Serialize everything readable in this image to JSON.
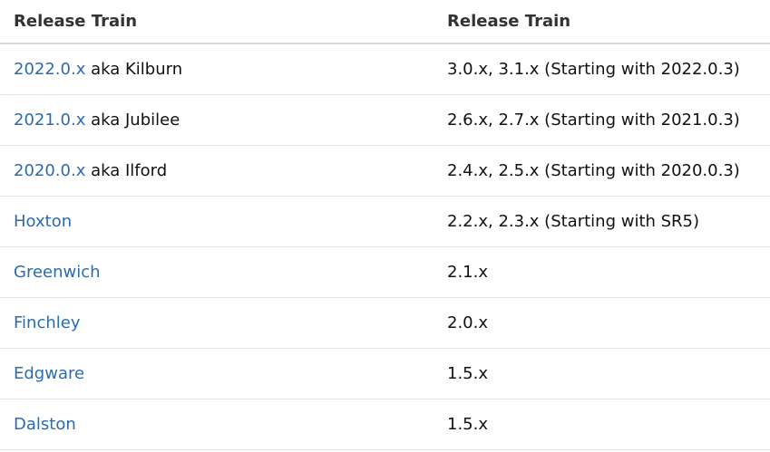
{
  "table": {
    "headers": [
      "Release Train",
      "Release Train"
    ],
    "rows": [
      {
        "link": "2022.0.x",
        "suffix": " aka Kilburn",
        "version": "3.0.x, 3.1.x (Starting with 2022.0.3)"
      },
      {
        "link": "2021.0.x",
        "suffix": " aka Jubilee",
        "version": "2.6.x, 2.7.x (Starting with 2021.0.3)"
      },
      {
        "link": "2020.0.x",
        "suffix": " aka Ilford",
        "version": "2.4.x, 2.5.x (Starting with 2020.0.3)"
      },
      {
        "link": "Hoxton",
        "suffix": "",
        "version": "2.2.x, 2.3.x (Starting with SR5)"
      },
      {
        "link": "Greenwich",
        "suffix": "",
        "version": "2.1.x"
      },
      {
        "link": "Finchley",
        "suffix": "",
        "version": "2.0.x"
      },
      {
        "link": "Edgware",
        "suffix": "",
        "version": "1.5.x"
      },
      {
        "link": "Dalston",
        "suffix": "",
        "version": "1.5.x"
      }
    ]
  },
  "colors": {
    "link": "#2b6cb0",
    "text": "#111111",
    "header": "#333333"
  }
}
